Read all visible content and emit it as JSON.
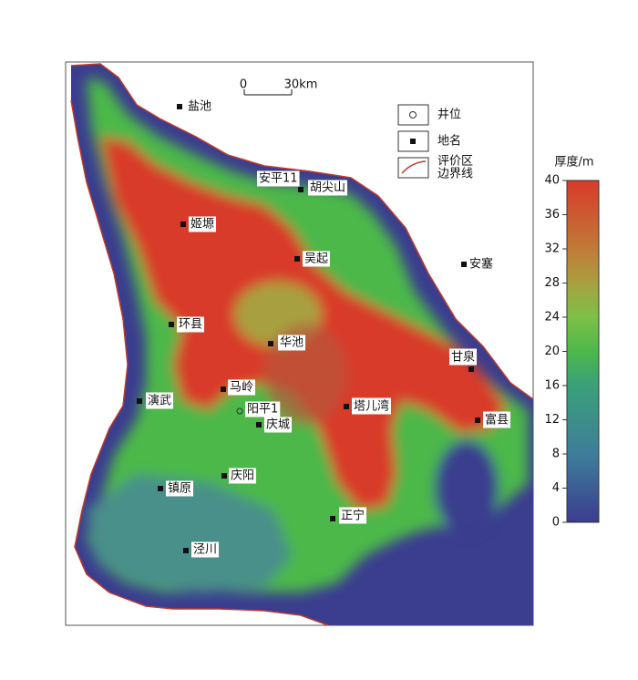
{
  "scale_bar": {
    "labels": [
      "0",
      "30km"
    ]
  },
  "legend": {
    "items": [
      {
        "label": "井位"
      },
      {
        "label": "地名"
      },
      {
        "label": [
          "评价区",
          "边界线"
        ]
      }
    ]
  },
  "colorbar": {
    "title": "厚度/m",
    "lim": [
      0,
      40
    ],
    "ticks": [
      0,
      4,
      8,
      12,
      16,
      20,
      24,
      28,
      32,
      36,
      40
    ]
  },
  "towns": [
    {
      "label": "盐池"
    },
    {
      "label": "胡尖山"
    },
    {
      "label": "姬塬"
    },
    {
      "label": "吴起"
    },
    {
      "label": "安塞"
    },
    {
      "label": "环县"
    },
    {
      "label": "华池"
    },
    {
      "label": "甘泉"
    },
    {
      "label": "马岭"
    },
    {
      "label": "演武"
    },
    {
      "label": "塔儿湾"
    },
    {
      "label": "庆城"
    },
    {
      "label": "富县"
    },
    {
      "label": "庆阳"
    },
    {
      "label": "镇原"
    },
    {
      "label": "正宁"
    },
    {
      "label": "泾川"
    }
  ],
  "wells": [
    {
      "label": "阳平1"
    }
  ],
  "other_labels": [
    {
      "label": "安平11"
    }
  ]
}
